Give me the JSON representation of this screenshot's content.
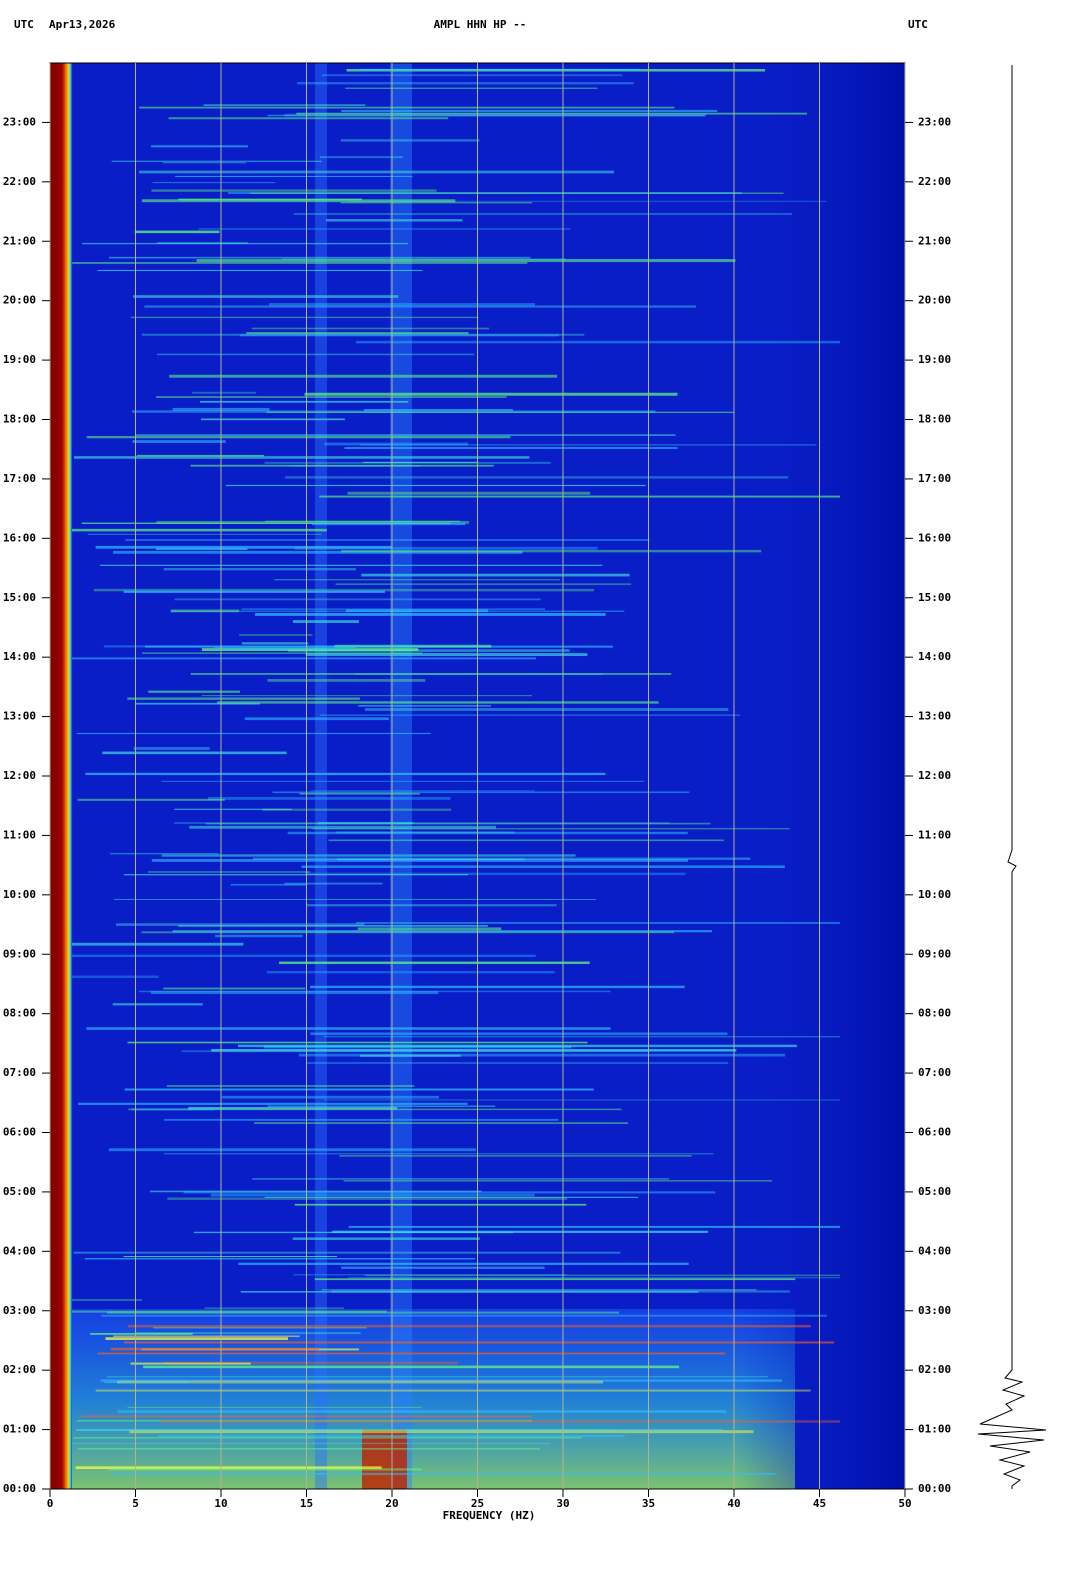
{
  "chart_data": {
    "type": "spectrogram",
    "title": "AMPL HHN HP --",
    "header_left": "UTC",
    "date": "Apr13,2026",
    "header_right": "UTC",
    "xlabel": "FREQUENCY (HZ)",
    "xlim": [
      0,
      50
    ],
    "xticks": [
      0,
      5,
      10,
      15,
      20,
      25,
      30,
      35,
      40,
      45,
      50
    ],
    "ylim": [
      0,
      24
    ],
    "yticks": [
      {
        "value": 0,
        "label": "00:00"
      },
      {
        "value": 1,
        "label": "01:00"
      },
      {
        "value": 2,
        "label": "02:00"
      },
      {
        "value": 3,
        "label": "03:00"
      },
      {
        "value": 4,
        "label": "04:00"
      },
      {
        "value": 5,
        "label": "05:00"
      },
      {
        "value": 6,
        "label": "06:00"
      },
      {
        "value": 7,
        "label": "07:00"
      },
      {
        "value": 8,
        "label": "08:00"
      },
      {
        "value": 9,
        "label": "09:00"
      },
      {
        "value": 10,
        "label": "10:00"
      },
      {
        "value": 11,
        "label": "11:00"
      },
      {
        "value": 12,
        "label": "12:00"
      },
      {
        "value": 13,
        "label": "13:00"
      },
      {
        "value": 14,
        "label": "14:00"
      },
      {
        "value": 15,
        "label": "15:00"
      },
      {
        "value": 16,
        "label": "16:00"
      },
      {
        "value": 17,
        "label": "17:00"
      },
      {
        "value": 18,
        "label": "18:00"
      },
      {
        "value": 19,
        "label": "19:00"
      },
      {
        "value": 20,
        "label": "20:00"
      },
      {
        "value": 21,
        "label": "21:00"
      },
      {
        "value": 22,
        "label": "22:00"
      },
      {
        "value": 23,
        "label": "23:00"
      }
    ],
    "grid": true,
    "grid_color": "#b4b48c"
  }
}
